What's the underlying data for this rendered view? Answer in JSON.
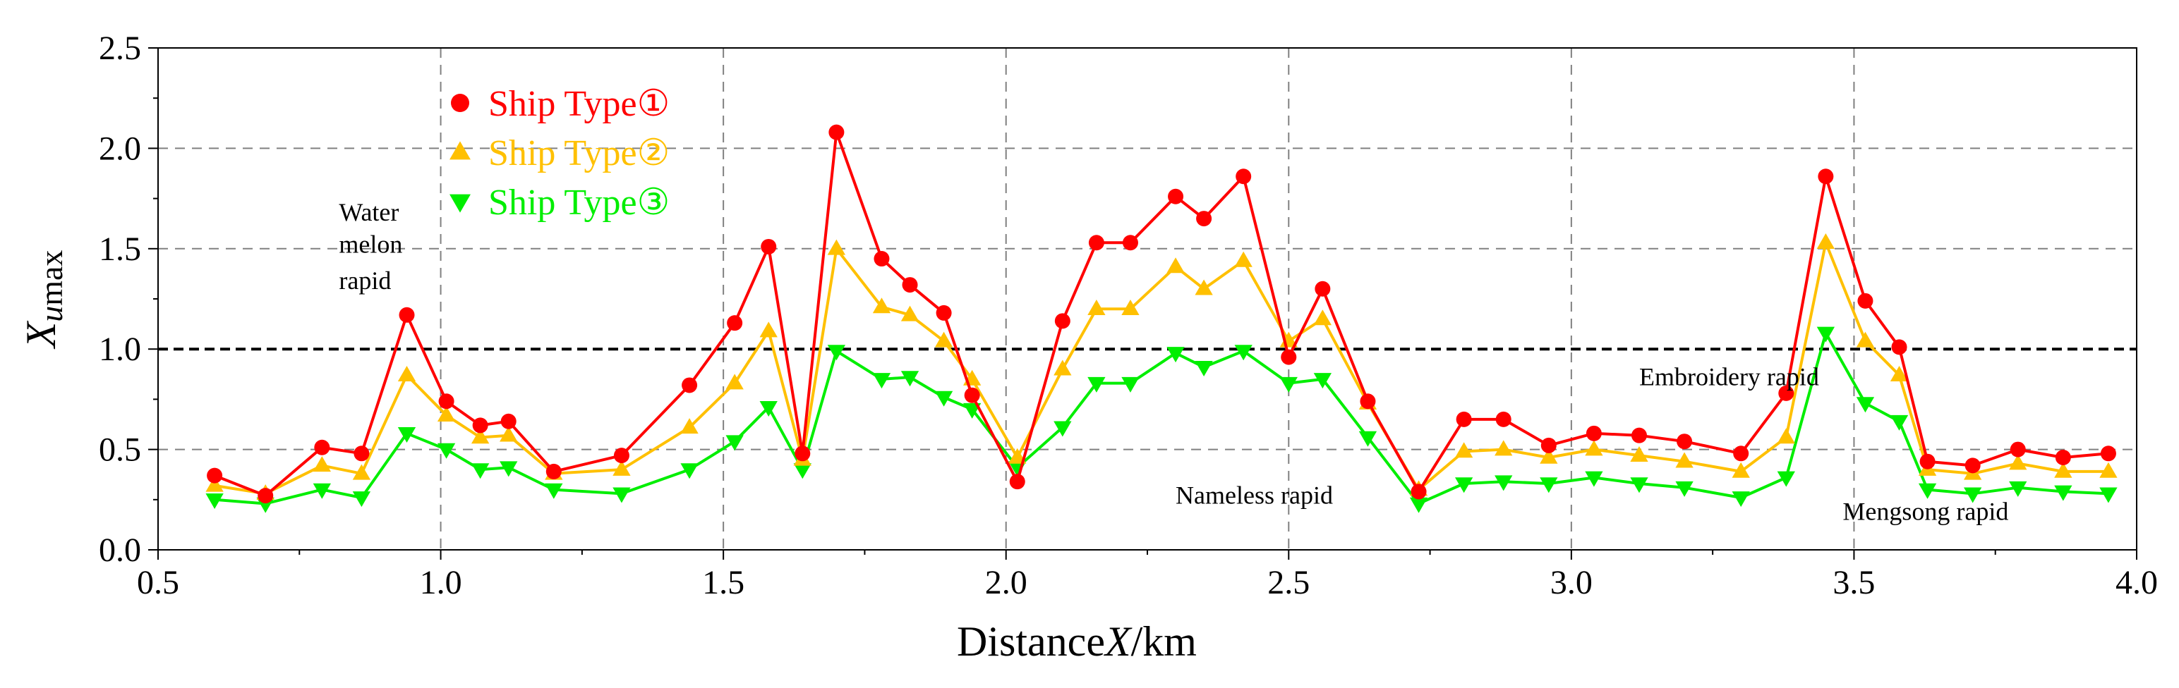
{
  "chart_data": {
    "type": "line",
    "title": "",
    "xlabel": "Distance X/km",
    "xlabel_parts": {
      "text": "Distance",
      "italic": "X",
      "unit": "/km"
    },
    "ylabel": "X u max",
    "ylabel_parts": {
      "italic": "X",
      "sub_italic": "u",
      "sub": "max"
    },
    "xlim": [
      0.5,
      4.0
    ],
    "ylim": [
      0.0,
      2.5
    ],
    "xticks": [
      "0.5",
      "1.0",
      "1.5",
      "2.0",
      "2.5",
      "3.0",
      "3.5",
      "4.0"
    ],
    "yticks": [
      "0.0",
      "0.5",
      "1.0",
      "1.5",
      "2.0",
      "2.5"
    ],
    "grid": true,
    "legend_position": "top-left",
    "reference_line": {
      "y": 1.0,
      "style": "dashed",
      "color": "#000000"
    },
    "x": [
      0.6,
      0.69,
      0.79,
      0.86,
      0.94,
      1.01,
      1.07,
      1.12,
      1.2,
      1.32,
      1.44,
      1.52,
      1.58,
      1.64,
      1.7,
      1.78,
      1.83,
      1.89,
      1.94,
      2.02,
      2.1,
      2.16,
      2.22,
      2.3,
      2.35,
      2.42,
      2.5,
      2.56,
      2.64,
      2.73,
      2.81,
      2.88,
      2.96,
      3.04,
      3.12,
      3.2,
      3.3,
      3.38,
      3.45,
      3.52,
      3.58,
      3.63,
      3.71,
      3.79,
      3.87,
      3.95
    ],
    "series": [
      {
        "name": "Ship Type①",
        "color": "#ff0000",
        "marker": "circle",
        "values": [
          0.37,
          0.27,
          0.51,
          0.48,
          1.17,
          0.74,
          0.62,
          0.64,
          0.39,
          0.47,
          0.82,
          1.13,
          1.51,
          0.48,
          2.08,
          1.45,
          1.32,
          1.18,
          0.77,
          0.34,
          1.14,
          1.53,
          1.53,
          1.76,
          1.65,
          1.86,
          0.96,
          1.3,
          0.74,
          0.29,
          0.65,
          0.65,
          0.52,
          0.58,
          0.57,
          0.54,
          0.48,
          0.78,
          1.86,
          1.24,
          1.01,
          0.44,
          0.42,
          0.5,
          0.46,
          0.48
        ]
      },
      {
        "name": "Ship Type②",
        "color": "#ffc000",
        "marker": "triangle-up",
        "values": [
          0.32,
          0.28,
          0.42,
          0.38,
          0.87,
          0.67,
          0.56,
          0.57,
          0.38,
          0.4,
          0.61,
          0.83,
          1.09,
          0.45,
          1.5,
          1.21,
          1.17,
          1.04,
          0.85,
          0.46,
          0.9,
          1.2,
          1.2,
          1.41,
          1.3,
          1.44,
          1.04,
          1.15,
          0.73,
          0.3,
          0.49,
          0.5,
          0.46,
          0.5,
          0.47,
          0.44,
          0.39,
          0.56,
          1.53,
          1.04,
          0.87,
          0.4,
          0.38,
          0.43,
          0.39,
          0.39
        ]
      },
      {
        "name": "Ship Type③",
        "color": "#00ee00",
        "marker": "triangle-down",
        "values": [
          0.25,
          0.23,
          0.3,
          0.26,
          0.58,
          0.5,
          0.4,
          0.41,
          0.3,
          0.28,
          0.4,
          0.54,
          0.71,
          0.4,
          0.99,
          0.85,
          0.86,
          0.76,
          0.7,
          0.41,
          0.61,
          0.83,
          0.83,
          0.98,
          0.91,
          0.99,
          0.83,
          0.85,
          0.56,
          0.23,
          0.33,
          0.34,
          0.33,
          0.36,
          0.33,
          0.31,
          0.26,
          0.36,
          1.08,
          0.73,
          0.64,
          0.3,
          0.28,
          0.31,
          0.29,
          0.28
        ]
      }
    ],
    "annotations": [
      {
        "text": "Water",
        "x": 0.82,
        "y": 1.64
      },
      {
        "text": "melon",
        "x": 0.82,
        "y": 1.48
      },
      {
        "text": "rapid",
        "x": 0.82,
        "y": 1.3
      },
      {
        "text": "Nameless rapid",
        "x": 2.3,
        "y": 0.23
      },
      {
        "text": "Embroidery rapid",
        "x": 3.12,
        "y": 0.82
      },
      {
        "text": "Mengsong rapid",
        "x": 3.48,
        "y": 0.15
      }
    ]
  }
}
